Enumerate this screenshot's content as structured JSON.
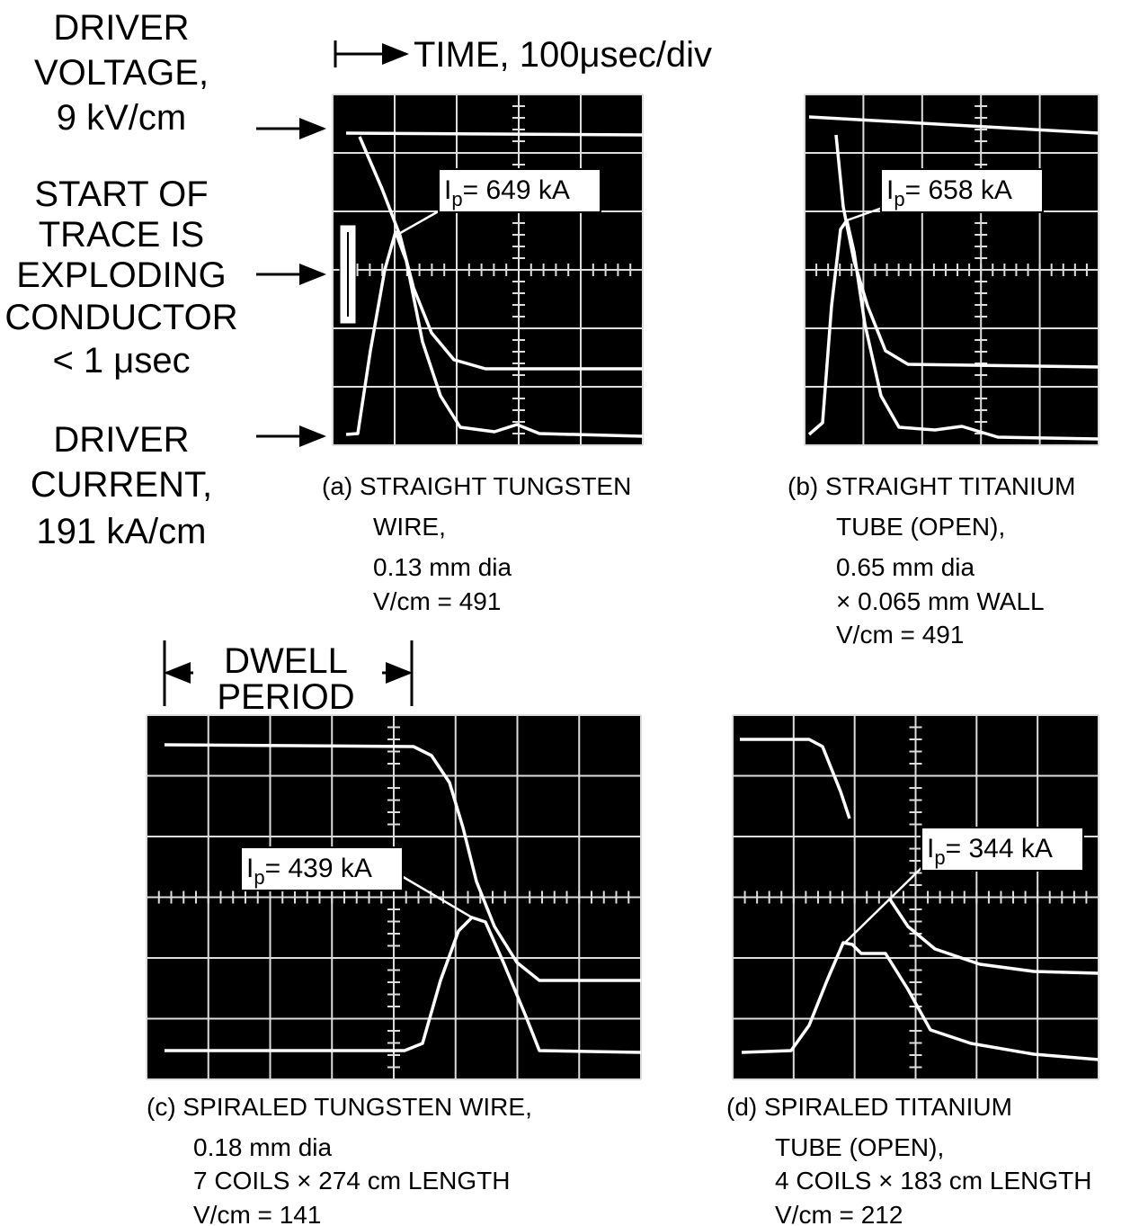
{
  "time_label": "TIME, 100μsec/div",
  "left_labels": {
    "voltage": [
      "DRIVER",
      "VOLTAGE,",
      "9 kV/cm"
    ],
    "start": [
      "START OF",
      "TRACE IS",
      "EXPLODING",
      "CONDUCTOR",
      "< 1 μsec"
    ],
    "current": [
      "DRIVER",
      "CURRENT,",
      "191 kA/cm"
    ]
  },
  "dwell_label": [
    "DWELL",
    "PERIOD"
  ],
  "panels": [
    {
      "peak": {
        "symbol": "I",
        "subscript": "p",
        "text": "= 649 kA"
      },
      "caption": [
        "(a) STRAIGHT TUNGSTEN",
        "WIRE,",
        "0.13 mm dia",
        "V/cm = 491"
      ]
    },
    {
      "peak": {
        "symbol": "I",
        "subscript": "p",
        "text": "= 658 kA"
      },
      "caption": [
        "(b) STRAIGHT TITANIUM",
        "TUBE (OPEN),",
        "0.65 mm dia",
        "× 0.065 mm WALL",
        "V/cm = 491"
      ]
    },
    {
      "peak": {
        "symbol": "I",
        "subscript": "p",
        "text": "= 439 kA"
      },
      "caption": [
        "(c) SPIRALED TUNGSTEN WIRE,",
        "0.18 mm dia",
        "7 COILS × 274 cm LENGTH",
        "V/cm = 141"
      ]
    },
    {
      "peak": {
        "symbol": "I",
        "subscript": "p",
        "text": "= 344 kA"
      },
      "caption": [
        "(d) SPIRALED TITANIUM",
        "TUBE (OPEN),",
        "4 COILS × 183 cm LENGTH",
        "V/cm = 212"
      ]
    }
  ]
}
